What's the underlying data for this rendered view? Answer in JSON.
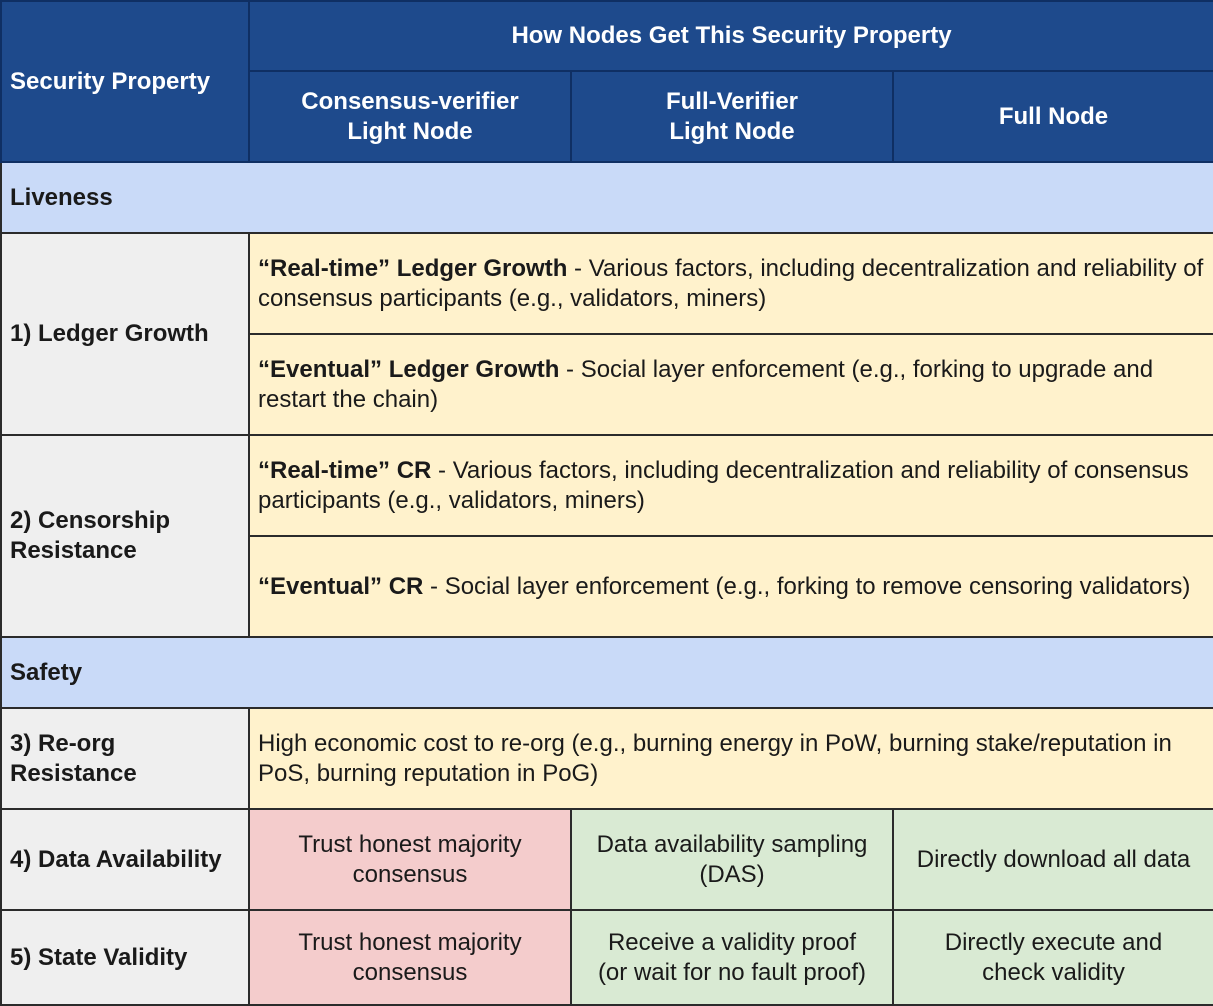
{
  "header": {
    "security_property": "Security Property",
    "how_nodes": "How Nodes Get This Security Property",
    "col1": [
      "Consensus-verifier",
      "Light Node"
    ],
    "col2": [
      "Full-Verifier",
      "Light Node"
    ],
    "col3": "Full Node"
  },
  "sections": {
    "liveness": "Liveness",
    "safety": "Safety"
  },
  "rows": {
    "ledger_growth": {
      "label": "1) Ledger Growth",
      "realtime_term": "“Real-time” Ledger Growth",
      "realtime_desc": " - Various factors, including decentralization and reliability of consensus participants (e.g., validators, miners)",
      "eventual_term": "“Eventual” Ledger Growth",
      "eventual_desc": " - Social layer enforcement (e.g., forking to upgrade and restart the chain)"
    },
    "censorship": {
      "label": [
        "2) Censorship",
        "Resistance"
      ],
      "realtime_term": "“Real-time” CR",
      "realtime_desc": " - Various factors, including decentralization and reliability of consensus participants (e.g., validators, miners)",
      "eventual_term": "“Eventual” CR",
      "eventual_desc": " - Social layer enforcement (e.g., forking to remove censoring validators)"
    },
    "reorg": {
      "label": [
        "3) Re-org",
        "Resistance"
      ],
      "desc": "High economic cost to re-org (e.g., burning energy in PoW, burning stake/reputation in PoS, burning reputation in PoG)"
    },
    "data_availability": {
      "label": "4) Data Availability",
      "c1": [
        "Trust honest majority",
        "consensus"
      ],
      "c2": [
        "Data availability sampling",
        "(DAS)"
      ],
      "c3": "Directly download all data"
    },
    "state_validity": {
      "label": "5) State Validity",
      "c1": [
        "Trust honest majority",
        "consensus"
      ],
      "c2": [
        "Receive a validity proof",
        "(or wait for no fault proof)"
      ],
      "c3": [
        "Directly execute and",
        "check validity"
      ]
    }
  },
  "colors": {
    "header_bg": "#1e4a8c",
    "section_bg": "#c9daf8",
    "property_bg": "#efefef",
    "yellow_bg": "#fff2cc",
    "red_bg": "#f4cccc",
    "green_bg": "#d9ead3"
  }
}
